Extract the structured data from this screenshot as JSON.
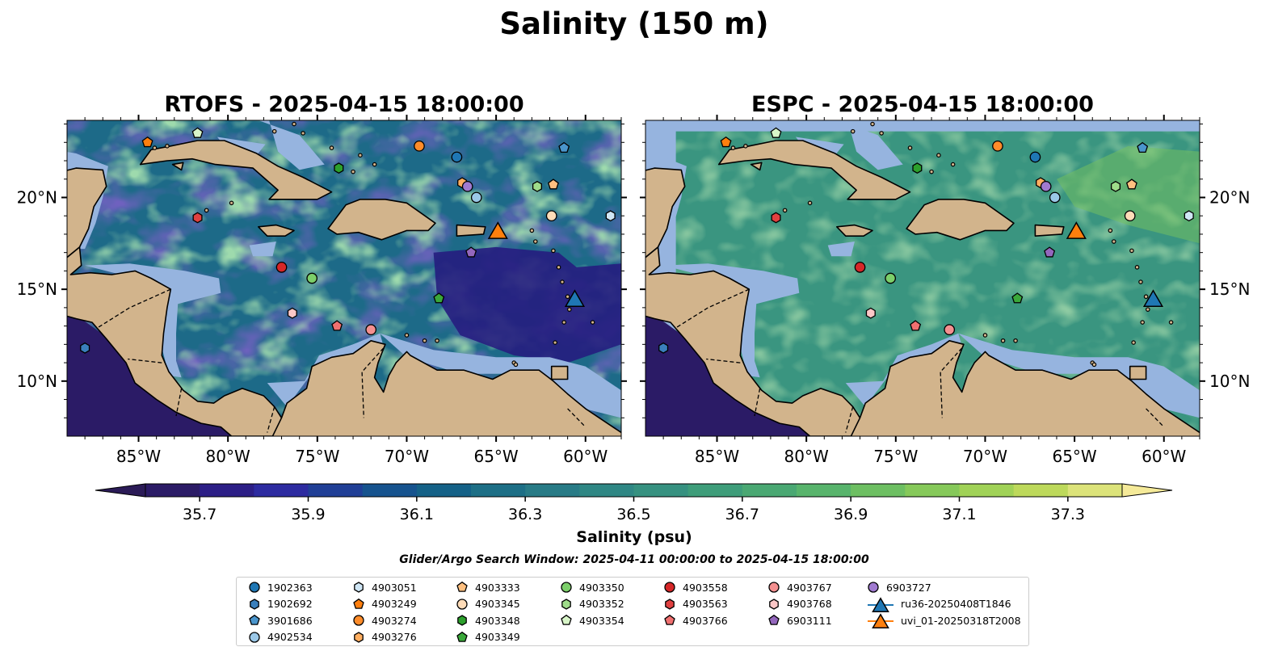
{
  "figure": {
    "title": "Salinity (150 m)",
    "search_window": "Glider/Argo Search Window: 2025-04-11 00:00:00 to 2025-04-15 18:00:00"
  },
  "panels": [
    {
      "title": "RTOFS - 2025-04-15 18:00:00",
      "tick_side": "left"
    },
    {
      "title": "ESPC - 2025-04-15 18:00:00",
      "tick_side": "right"
    }
  ],
  "map_extent": {
    "lon_min": -89,
    "lon_max": -58,
    "lat_min": 7,
    "lat_max": 24.2
  },
  "axes": {
    "lon_ticks": [
      -85,
      -80,
      -75,
      -70,
      -65,
      -60
    ],
    "lon_labels": [
      "85°W",
      "80°W",
      "75°W",
      "70°W",
      "65°W",
      "60°W"
    ],
    "lat_ticks": [
      10,
      15,
      20
    ],
    "lat_labels": [
      "10°N",
      "15°N",
      "20°N"
    ]
  },
  "colorbar": {
    "label": "Salinity (psu)",
    "min": 35.6,
    "max": 37.4,
    "step": 0.1,
    "ticks": [
      "35.7",
      "35.9",
      "36.1",
      "36.3",
      "36.5",
      "36.7",
      "36.9",
      "37.1",
      "37.3"
    ],
    "colors": [
      "#2b1b66",
      "#2c1e86",
      "#2d2ba0",
      "#203f96",
      "#16538e",
      "#146187",
      "#1d6f86",
      "#287b86",
      "#2f8784",
      "#369180",
      "#3e9d7a",
      "#4aa873",
      "#58b46c",
      "#6dbf62",
      "#86c95a",
      "#a0d257",
      "#bdd95b",
      "#dce37a"
    ],
    "extend_low_color": "#2b1b57",
    "extend_high_color": "#f5ea99"
  },
  "map_colors": {
    "land": "#d2b48c",
    "shelf": "#96b4df",
    "pacific_deep": "#2b1b66",
    "rtofs_ocean": "#1d6a88",
    "rtofs_high": "#58b46c",
    "rtofs_low": "#261d80",
    "espc_ocean": "#3a9580",
    "espc_high": "#72c060"
  },
  "floats": [
    {
      "id": "1902363",
      "marker": "circle",
      "color": "#1f77b4",
      "lon": -67.2,
      "lat": 22.2
    },
    {
      "id": "1902692",
      "marker": "hexagon",
      "color": "#3a7fbc",
      "lon": -88.0,
      "lat": 11.8
    },
    {
      "id": "3901686",
      "marker": "pentagon",
      "color": "#4a95cc",
      "lon": -61.2,
      "lat": 22.7
    },
    {
      "id": "4902534",
      "marker": "circle",
      "color": "#9bc8e8",
      "lon": -66.1,
      "lat": 20.0
    },
    {
      "id": "4903051",
      "marker": "hexagon",
      "color": "#cfe6f5",
      "lon": -58.6,
      "lat": 19.0
    },
    {
      "id": "4903249",
      "marker": "pentagon",
      "color": "#ff7f0e",
      "lon": -84.5,
      "lat": 23.0
    },
    {
      "id": "4903274",
      "marker": "circle",
      "color": "#ff8c2a",
      "lon": -69.3,
      "lat": 22.8
    },
    {
      "id": "4903276",
      "marker": "hexagon",
      "color": "#ffae60",
      "lon": -66.9,
      "lat": 20.8
    },
    {
      "id": "4903333",
      "marker": "pentagon",
      "color": "#ffc080",
      "lon": -61.8,
      "lat": 20.7
    },
    {
      "id": "4903345",
      "marker": "circle",
      "color": "#ffdcb8",
      "lon": -61.9,
      "lat": 19.0
    },
    {
      "id": "4903348",
      "marker": "hexagon",
      "color": "#2ca02c",
      "lon": -73.8,
      "lat": 21.6
    },
    {
      "id": "4903349",
      "marker": "pentagon",
      "color": "#3aa83a",
      "lon": -68.2,
      "lat": 14.5
    },
    {
      "id": "4903350",
      "marker": "circle",
      "color": "#7ccf6a",
      "lon": -75.3,
      "lat": 15.6
    },
    {
      "id": "4903352",
      "marker": "hexagon",
      "color": "#9fdc8a",
      "lon": -62.7,
      "lat": 20.6
    },
    {
      "id": "4903354",
      "marker": "pentagon",
      "color": "#d8f5c8",
      "lon": -81.7,
      "lat": 23.5
    },
    {
      "id": "4903558",
      "marker": "circle",
      "color": "#d62728",
      "lon": -77.0,
      "lat": 16.2
    },
    {
      "id": "4903563",
      "marker": "hexagon",
      "color": "#e04040",
      "lon": -81.7,
      "lat": 18.9
    },
    {
      "id": "4903766",
      "marker": "pentagon",
      "color": "#f07070",
      "lon": -73.9,
      "lat": 13.0
    },
    {
      "id": "4903767",
      "marker": "circle",
      "color": "#f49090",
      "lon": -72.0,
      "lat": 12.8
    },
    {
      "id": "4903768",
      "marker": "hexagon",
      "color": "#fbc7c7",
      "lon": -76.4,
      "lat": 13.7
    },
    {
      "id": "6903111",
      "marker": "pentagon",
      "color": "#9467bd",
      "lon": -66.4,
      "lat": 17.0
    },
    {
      "id": "6903727",
      "marker": "circle",
      "color": "#a07ad0",
      "lon": -66.6,
      "lat": 20.6
    }
  ],
  "gliders": [
    {
      "id": "ru36-20250408T1846",
      "color": "#1f77b4",
      "lon": -60.6,
      "lat": 14.5
    },
    {
      "id": "uvi_01-20250318T2008",
      "color": "#ff7f0e",
      "lon": -64.9,
      "lat": 18.2
    }
  ]
}
